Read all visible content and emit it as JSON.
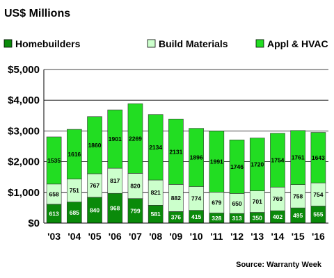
{
  "chart_data": {
    "type": "bar",
    "stacked": true,
    "title": "US$ Millions",
    "categories": [
      "'03",
      "'04",
      "'05",
      "'06",
      "'07",
      "'08",
      "'09",
      "'10",
      "'11",
      "'12",
      "'13",
      "'14",
      "'15",
      "'16"
    ],
    "series": [
      {
        "name": "Homebuilders",
        "color": "#0a8a0a",
        "label_color": "#ffffff",
        "values": [
          613,
          685,
          840,
          968,
          799,
          581,
          376,
          415,
          328,
          313,
          350,
          402,
          495,
          555
        ]
      },
      {
        "name": "Build Materials",
        "color": "#ccffcc",
        "label_color": "#000000",
        "values": [
          658,
          751,
          767,
          817,
          820,
          821,
          882,
          774,
          679,
          650,
          701,
          769,
          758,
          754
        ]
      },
      {
        "name": "Appl & HVAC",
        "color": "#22dd22",
        "label_color": "#000000",
        "values": [
          1535,
          1616,
          1860,
          1901,
          2269,
          2134,
          2131,
          1896,
          1991,
          1746,
          1720,
          1754,
          1761,
          1643
        ]
      }
    ],
    "ylim": [
      0,
      5000
    ],
    "yticks": [
      "$0",
      "$1,000",
      "$2,000",
      "$3,000",
      "$4,000",
      "$5,000"
    ],
    "grid": true,
    "legend_position": "top",
    "source": "Source: Warranty Week"
  }
}
